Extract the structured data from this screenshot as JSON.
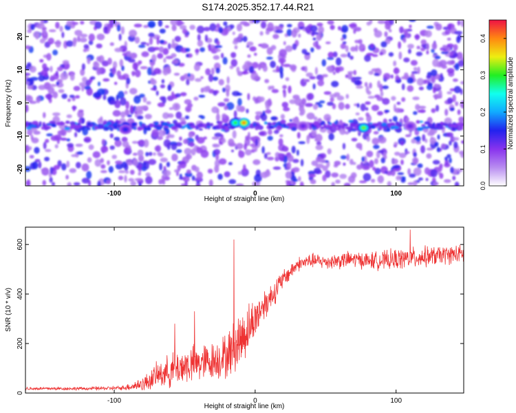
{
  "title": "S174.2025.352.17.44.R21",
  "colors": {
    "line": "#ee3333",
    "background": "#ffffff",
    "axis": "#000000"
  },
  "chart_data": [
    {
      "type": "heatmap",
      "xlabel": "Height of straight line (km)",
      "ylabel": "Frequency (Hz)",
      "xlim": [
        -163,
        148
      ],
      "ylim": [
        -25,
        25
      ],
      "x_ticks": [
        -100,
        0,
        100
      ],
      "y_ticks": [
        -20,
        -10,
        0,
        10,
        20
      ],
      "colorbar": {
        "label": "Normalized spectral amplitude",
        "range": [
          0.0,
          0.45
        ],
        "ticks": [
          0.0,
          0.1,
          0.2,
          0.3,
          0.4
        ],
        "colors": [
          "#ffffff",
          "#b88cf0",
          "#8833ee",
          "#2222ee",
          "#11aaff",
          "#11ffee",
          "#22ee22",
          "#eeee11",
          "#ff8811",
          "#ee1144"
        ]
      },
      "signal_band_hz": -7,
      "hotspots": [
        {
          "x": -14,
          "y": -6,
          "value": 0.3
        },
        {
          "x": -8,
          "y": -6,
          "value": 0.4
        },
        {
          "x": 77,
          "y": -7.5,
          "value": 0.32
        },
        {
          "x": -92,
          "y": -8,
          "value": 0.15
        },
        {
          "x": 34,
          "y": -7,
          "value": 0.12
        },
        {
          "x": 110,
          "y": -7,
          "value": 0.12
        }
      ]
    },
    {
      "type": "line",
      "xlabel": "Height of straight line (km)",
      "ylabel": "SNR (10 * v/v)",
      "xlim": [
        -163,
        148
      ],
      "ylim": [
        0,
        670
      ],
      "x_ticks": [
        -100,
        0,
        100
      ],
      "y_ticks": [
        0,
        200,
        400,
        600
      ],
      "series": [
        {
          "name": "SNR",
          "x": [
            -163,
            -120,
            -95,
            -85,
            -78,
            -70,
            -60,
            -50,
            -40,
            -30,
            -20,
            -10,
            0,
            5,
            10,
            15,
            20,
            25,
            30,
            40,
            50,
            60,
            70,
            80,
            90,
            100,
            110,
            120,
            130,
            140,
            148
          ],
          "mean": [
            18,
            18,
            20,
            30,
            40,
            70,
            90,
            110,
            120,
            130,
            150,
            220,
            300,
            350,
            380,
            420,
            460,
            490,
            520,
            535,
            530,
            535,
            540,
            535,
            535,
            540,
            545,
            550,
            555,
            560,
            560
          ],
          "spread": [
            8,
            8,
            10,
            25,
            40,
            60,
            80,
            90,
            90,
            90,
            110,
            140,
            100,
            80,
            70,
            60,
            45,
            40,
            35,
            35,
            35,
            40,
            40,
            40,
            45,
            50,
            50,
            50,
            45,
            45,
            45
          ]
        }
      ],
      "peaks": [
        {
          "x": -15,
          "y": 620
        },
        {
          "x": 110,
          "y": 660
        },
        {
          "x": -43,
          "y": 330
        },
        {
          "x": -57,
          "y": 280
        }
      ]
    }
  ]
}
